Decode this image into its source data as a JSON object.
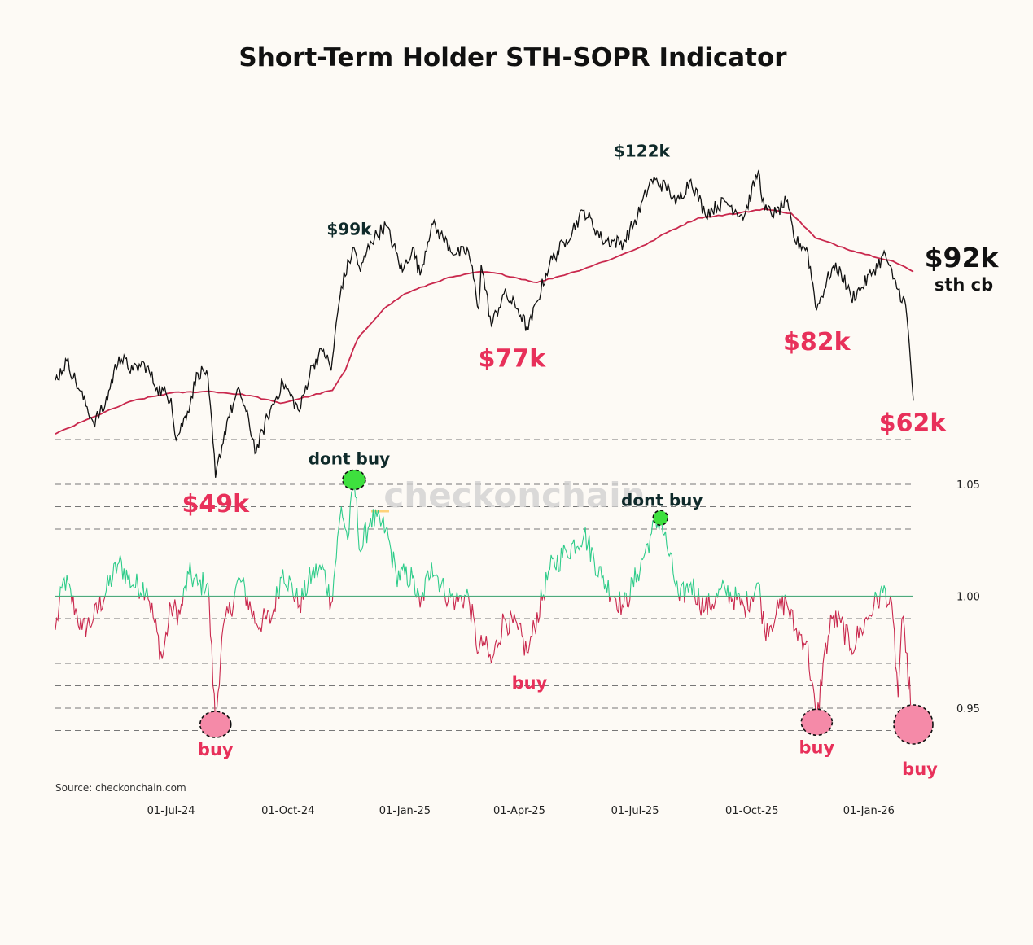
{
  "chart_data": {
    "type": "line",
    "title": "Short-Term Holder STH-SOPR Indicator",
    "source": "Source: checkonchain.com",
    "watermark": "checkonchain",
    "x_tick_labels": [
      "01-Jul-24",
      "01-Oct-24",
      "01-Jan-25",
      "01-Apr-25",
      "01-Jul-25",
      "01-Oct-25",
      "01-Jan-26"
    ],
    "price_axis": {
      "scale": "log",
      "ylim": [
        44000,
        130000
      ],
      "visible": false
    },
    "sopr_axis": {
      "ylim": [
        0.93,
        1.07
      ],
      "ticks": [
        0.95,
        1.0,
        1.05
      ],
      "tick_labels": [
        "0.95",
        "1.00",
        "1.05"
      ],
      "baseline": 1.0
    },
    "series": [
      {
        "name": "BTC Price",
        "color": "#111111",
        "points": [
          [
            "2024-04-01",
            66000
          ],
          [
            "2024-04-10",
            70000
          ],
          [
            "2024-04-20",
            64000
          ],
          [
            "2024-05-01",
            58000
          ],
          [
            "2024-05-10",
            61000
          ],
          [
            "2024-05-21",
            71000
          ],
          [
            "2024-06-01",
            68000
          ],
          [
            "2024-06-10",
            69500
          ],
          [
            "2024-06-20",
            64500
          ],
          [
            "2024-07-01",
            62500
          ],
          [
            "2024-07-05",
            55000
          ],
          [
            "2024-07-14",
            60000
          ],
          [
            "2024-07-22",
            67500
          ],
          [
            "2024-07-29",
            68000
          ],
          [
            "2024-08-05",
            49000
          ],
          [
            "2024-08-15",
            59000
          ],
          [
            "2024-08-24",
            64000
          ],
          [
            "2024-09-06",
            53000
          ],
          [
            "2024-09-15",
            59000
          ],
          [
            "2024-09-27",
            65500
          ],
          [
            "2024-10-10",
            60000
          ],
          [
            "2024-10-20",
            69000
          ],
          [
            "2024-10-29",
            72500
          ],
          [
            "2024-11-04",
            68000
          ],
          [
            "2024-11-12",
            88000
          ],
          [
            "2024-11-22",
            99000
          ],
          [
            "2024-11-27",
            92000
          ],
          [
            "2024-12-05",
            101000
          ],
          [
            "2024-12-17",
            106000
          ],
          [
            "2024-12-30",
            92000
          ],
          [
            "2025-01-07",
            99000
          ],
          [
            "2025-01-13",
            91000
          ],
          [
            "2025-01-22",
            106500
          ],
          [
            "2025-01-31",
            102000
          ],
          [
            "2025-02-10",
            97000
          ],
          [
            "2025-02-20",
            98000
          ],
          [
            "2025-02-28",
            82000
          ],
          [
            "2025-03-02",
            94000
          ],
          [
            "2025-03-10",
            78000
          ],
          [
            "2025-03-20",
            86000
          ],
          [
            "2025-03-31",
            82000
          ],
          [
            "2025-04-08",
            77000
          ],
          [
            "2025-04-15",
            84000
          ],
          [
            "2025-04-25",
            94500
          ],
          [
            "2025-05-08",
            101500
          ],
          [
            "2025-05-22",
            111000
          ],
          [
            "2025-06-05",
            101500
          ],
          [
            "2025-06-22",
            100500
          ],
          [
            "2025-07-03",
            109000
          ],
          [
            "2025-07-14",
            122000
          ],
          [
            "2025-07-28",
            118500
          ],
          [
            "2025-08-02",
            113000
          ],
          [
            "2025-08-14",
            122000
          ],
          [
            "2025-08-25",
            110000
          ],
          [
            "2025-09-10",
            114000
          ],
          [
            "2025-09-25",
            109000
          ],
          [
            "2025-10-06",
            125000
          ],
          [
            "2025-10-11",
            111000
          ],
          [
            "2025-10-20",
            110000
          ],
          [
            "2025-10-28",
            114000
          ],
          [
            "2025-11-04",
            101000
          ],
          [
            "2025-11-13",
            99000
          ],
          [
            "2025-11-21",
            82000
          ],
          [
            "2025-12-03",
            93000
          ],
          [
            "2025-12-10",
            92000
          ],
          [
            "2025-12-18",
            85000
          ],
          [
            "2025-12-26",
            87500
          ],
          [
            "2026-01-05",
            92500
          ],
          [
            "2026-01-14",
            97000
          ],
          [
            "2026-01-20",
            90000
          ],
          [
            "2026-01-30",
            83000
          ],
          [
            "2026-02-05",
            62000
          ]
        ]
      },
      {
        "name": "STH Cost Basis",
        "color": "#c9284d",
        "points": [
          [
            "2024-04-01",
            56000
          ],
          [
            "2024-05-01",
            59000
          ],
          [
            "2024-06-01",
            62000
          ],
          [
            "2024-07-01",
            63500
          ],
          [
            "2024-08-01",
            63800
          ],
          [
            "2024-09-01",
            63000
          ],
          [
            "2024-09-25",
            61500
          ],
          [
            "2024-10-20",
            63000
          ],
          [
            "2024-11-05",
            64000
          ],
          [
            "2024-11-15",
            68000
          ],
          [
            "2024-11-25",
            75000
          ],
          [
            "2024-12-15",
            82000
          ],
          [
            "2025-01-01",
            86000
          ],
          [
            "2025-02-01",
            90000
          ],
          [
            "2025-03-01",
            92000
          ],
          [
            "2025-03-15",
            91500
          ],
          [
            "2025-04-15",
            89000
          ],
          [
            "2025-05-15",
            92000
          ],
          [
            "2025-06-15",
            96000
          ],
          [
            "2025-07-10",
            100000
          ],
          [
            "2025-07-25",
            103500
          ],
          [
            "2025-08-20",
            108500
          ],
          [
            "2025-09-20",
            110000
          ],
          [
            "2025-10-10",
            111500
          ],
          [
            "2025-11-01",
            110000
          ],
          [
            "2025-11-20",
            102000
          ],
          [
            "2025-12-20",
            98000
          ],
          [
            "2026-01-20",
            95000
          ],
          [
            "2026-02-05",
            92000
          ]
        ]
      },
      {
        "name": "STH-SOPR",
        "color_above": "#2ecc8a",
        "color_below": "#c9284d",
        "points": [
          [
            "2024-04-01",
            0.985
          ],
          [
            "2024-04-08",
            1.008
          ],
          [
            "2024-04-18",
            0.992
          ],
          [
            "2024-04-22",
            0.985
          ],
          [
            "2024-05-01",
            0.99
          ],
          [
            "2024-05-21",
            1.015
          ],
          [
            "2024-06-01",
            1.005
          ],
          [
            "2024-06-12",
            1.004
          ],
          [
            "2024-06-24",
            0.972
          ],
          [
            "2024-07-01",
            0.995
          ],
          [
            "2024-07-08",
            0.992
          ],
          [
            "2024-07-15",
            1.01
          ],
          [
            "2024-07-22",
            1.005
          ],
          [
            "2024-07-30",
            1.006
          ],
          [
            "2024-08-05",
            0.942
          ],
          [
            "2024-08-10",
            0.982
          ],
          [
            "2024-08-24",
            1.008
          ],
          [
            "2024-09-06",
            0.988
          ],
          [
            "2024-09-18",
            0.99
          ],
          [
            "2024-09-27",
            1.012
          ],
          [
            "2024-10-10",
            0.996
          ],
          [
            "2024-10-20",
            1.01
          ],
          [
            "2024-10-29",
            1.012
          ],
          [
            "2024-11-04",
            0.997
          ],
          [
            "2024-11-12",
            1.04
          ],
          [
            "2024-11-17",
            1.025
          ],
          [
            "2024-11-22",
            1.052
          ],
          [
            "2024-11-27",
            1.02
          ],
          [
            "2024-12-05",
            1.035
          ],
          [
            "2024-12-17",
            1.03
          ],
          [
            "2024-12-25",
            1.01
          ],
          [
            "2025-01-07",
            1.008
          ],
          [
            "2025-01-13",
            0.995
          ],
          [
            "2025-01-22",
            1.015
          ],
          [
            "2025-02-01",
            1.002
          ],
          [
            "2025-02-10",
            0.998
          ],
          [
            "2025-02-20",
            1.0
          ],
          [
            "2025-02-28",
            0.975
          ],
          [
            "2025-03-04",
            0.98
          ],
          [
            "2025-03-10",
            0.97
          ],
          [
            "2025-03-20",
            0.99
          ],
          [
            "2025-03-31",
            0.985
          ],
          [
            "2025-04-07",
            0.975
          ],
          [
            "2025-04-09",
            0.978
          ],
          [
            "2025-04-25",
            1.012
          ],
          [
            "2025-05-08",
            1.02
          ],
          [
            "2025-05-22",
            1.028
          ],
          [
            "2025-06-05",
            1.008
          ],
          [
            "2025-06-22",
            0.995
          ],
          [
            "2025-07-03",
            1.01
          ],
          [
            "2025-07-14",
            1.028
          ],
          [
            "2025-07-21",
            1.035
          ],
          [
            "2025-07-28",
            1.018
          ],
          [
            "2025-08-05",
            0.998
          ],
          [
            "2025-08-14",
            1.006
          ],
          [
            "2025-08-25",
            0.994
          ],
          [
            "2025-09-10",
            1.003
          ],
          [
            "2025-09-25",
            0.995
          ],
          [
            "2025-10-06",
            1.006
          ],
          [
            "2025-10-11",
            0.985
          ],
          [
            "2025-10-20",
            0.992
          ],
          [
            "2025-10-28",
            0.998
          ],
          [
            "2025-11-04",
            0.985
          ],
          [
            "2025-11-13",
            0.98
          ],
          [
            "2025-11-21",
            0.943
          ],
          [
            "2025-11-26",
            0.97
          ],
          [
            "2025-12-03",
            0.99
          ],
          [
            "2025-12-10",
            0.988
          ],
          [
            "2025-12-18",
            0.977
          ],
          [
            "2025-12-26",
            0.985
          ],
          [
            "2026-01-05",
            0.996
          ],
          [
            "2026-01-14",
            1.003
          ],
          [
            "2026-01-20",
            0.99
          ],
          [
            "2026-01-24",
            0.955
          ],
          [
            "2026-01-27",
            0.99
          ],
          [
            "2026-01-30",
            0.975
          ],
          [
            "2026-02-05",
            0.942
          ]
        ]
      }
    ],
    "price_annotations": [
      {
        "text": "$99k",
        "date": "2024-11-22",
        "value": 99000
      },
      {
        "text": "$122k",
        "date": "2025-07-14",
        "value": 122000
      },
      {
        "text": "$77k",
        "date": "2025-04-08",
        "value": 77000
      },
      {
        "text": "$82k",
        "date": "2025-11-21",
        "value": 82000
      },
      {
        "text": "$49k",
        "date": "2024-08-05",
        "value": 49000
      },
      {
        "text": "$62k",
        "date": "2026-02-05",
        "value": 62000
      },
      {
        "text": "$92k",
        "subtext": "sth cb",
        "date": "2026-02-05",
        "value": 92000
      }
    ],
    "signal_annotations": [
      {
        "text": "dont buy",
        "kind": "sell",
        "date": "2024-11-22",
        "value": 1.052
      },
      {
        "text": "dont buy",
        "kind": "sell",
        "date": "2025-07-21",
        "value": 1.035
      },
      {
        "text": "buy",
        "kind": "buy",
        "date": "2024-08-05",
        "value": 0.942
      },
      {
        "text": "buy",
        "kind": "buy",
        "date": "2025-04-09",
        "value": 0.978
      },
      {
        "text": "buy",
        "kind": "buy",
        "date": "2025-11-21",
        "value": 0.943
      },
      {
        "text": "buy",
        "kind": "buy",
        "date": "2026-02-05",
        "value": 0.942
      }
    ],
    "colors": {
      "background": "#fdfaf5",
      "price": "#111111",
      "cost_basis": "#c9284d",
      "sopr_above": "#2ecc8a",
      "sopr_below": "#c9284d",
      "buy_marker": "#f58aa8",
      "sell_marker": "#3ee03e",
      "label_red": "#e8305a"
    }
  }
}
